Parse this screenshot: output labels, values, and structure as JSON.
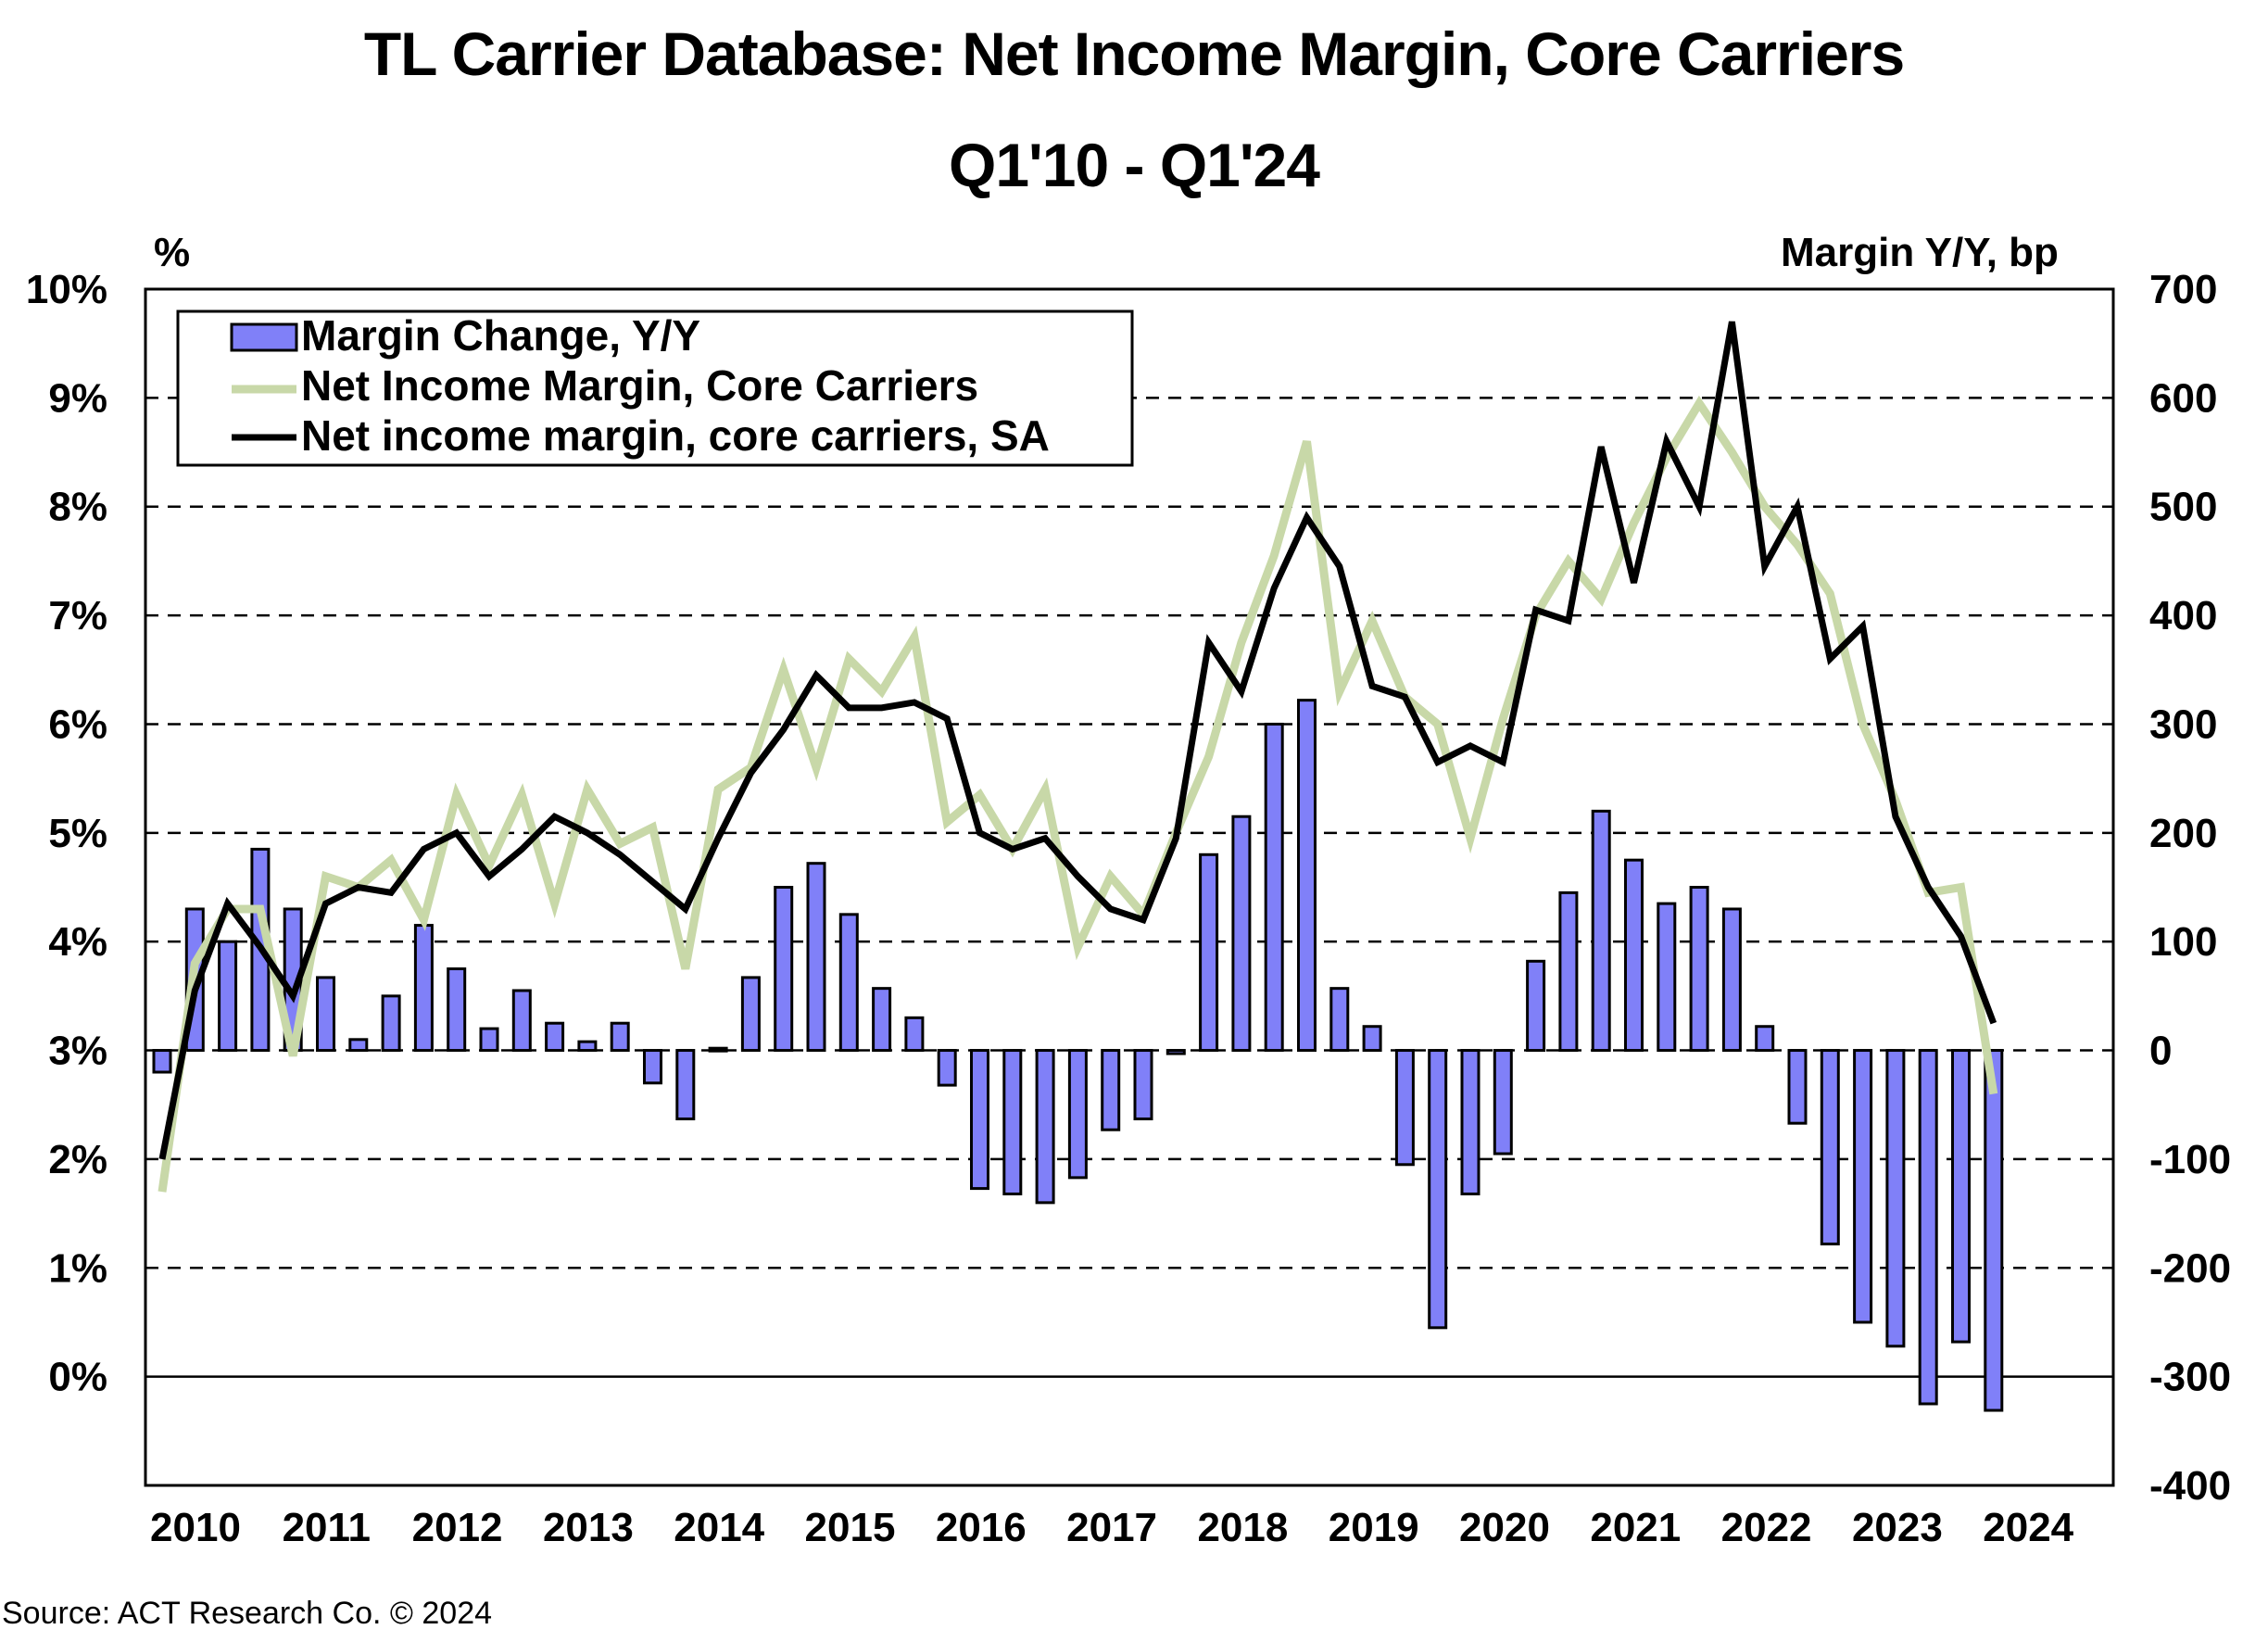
{
  "chart_data": {
    "type": "bar+line",
    "title": "TL Carrier Database: Net Income Margin, Core Carriers",
    "subtitle": "Q1'10 - Q1'24",
    "ylabel_left": "%",
    "ylabel_right": "Margin Y/Y, bp",
    "ylim_left": [
      -1,
      10
    ],
    "ylim_right": [
      -400,
      700
    ],
    "yticks_left": [
      "0%",
      "1%",
      "2%",
      "3%",
      "4%",
      "5%",
      "6%",
      "7%",
      "8%",
      "9%",
      "10%"
    ],
    "yticks_right": [
      "-400",
      "-300",
      "-200",
      "-100",
      "0",
      "100",
      "200",
      "300",
      "400",
      "500",
      "600",
      "700"
    ],
    "xticks": [
      "2010",
      "2011",
      "2012",
      "2013",
      "2014",
      "2015",
      "2016",
      "2017",
      "2018",
      "2019",
      "2020",
      "2021",
      "2022",
      "2023",
      "2024"
    ],
    "grid": "horizontal dashed",
    "legend_position": "top-left",
    "x": [
      "Q1'10",
      "Q2'10",
      "Q3'10",
      "Q4'10",
      "Q1'11",
      "Q2'11",
      "Q3'11",
      "Q4'11",
      "Q1'12",
      "Q2'12",
      "Q3'12",
      "Q4'12",
      "Q1'13",
      "Q2'13",
      "Q3'13",
      "Q4'13",
      "Q1'14",
      "Q2'14",
      "Q3'14",
      "Q4'14",
      "Q1'15",
      "Q2'15",
      "Q3'15",
      "Q4'15",
      "Q1'16",
      "Q2'16",
      "Q3'16",
      "Q4'16",
      "Q1'17",
      "Q2'17",
      "Q3'17",
      "Q4'17",
      "Q1'18",
      "Q2'18",
      "Q3'18",
      "Q4'18",
      "Q1'19",
      "Q2'19",
      "Q3'19",
      "Q4'19",
      "Q1'20",
      "Q2'20",
      "Q3'20",
      "Q4'20",
      "Q1'21",
      "Q2'21",
      "Q3'21",
      "Q4'21",
      "Q1'22",
      "Q2'22",
      "Q3'22",
      "Q4'22",
      "Q1'23",
      "Q2'23",
      "Q3'23",
      "Q4'23",
      "Q1'24"
    ],
    "series": [
      {
        "name": "Margin Change, Y/Y",
        "type": "bar",
        "axis": "right",
        "color": "#8080f8",
        "values": [
          -20,
          130,
          100,
          185,
          130,
          67,
          10,
          50,
          115,
          75,
          20,
          55,
          25,
          8,
          25,
          -30,
          -63,
          2,
          67,
          150,
          172,
          125,
          57,
          30,
          -32,
          -127,
          -132,
          -140,
          -117,
          -73,
          -63,
          -3,
          180,
          215,
          300,
          322,
          57,
          22,
          -105,
          -255,
          -132,
          -95,
          82,
          145,
          220,
          175,
          135,
          150,
          130,
          22,
          -67,
          -178,
          -250,
          -272,
          -325,
          -268,
          -331
        ]
      },
      {
        "name": "Net Income Margin, Core Carriers",
        "type": "line",
        "axis": "left",
        "color": "#c8d8a8",
        "values": [
          1.7,
          3.8,
          4.3,
          4.3,
          2.95,
          4.6,
          4.5,
          4.75,
          4.2,
          5.35,
          4.7,
          5.35,
          4.35,
          5.4,
          4.9,
          5.05,
          3.75,
          5.4,
          5.6,
          6.5,
          5.6,
          6.6,
          6.3,
          6.8,
          5.1,
          5.35,
          4.85,
          5.4,
          3.95,
          4.6,
          4.25,
          5.0,
          5.7,
          6.75,
          7.55,
          8.6,
          6.3,
          6.95,
          6.25,
          6.0,
          4.95,
          6.05,
          7.0,
          7.5,
          7.15,
          7.85,
          8.45,
          8.95,
          8.5,
          8.0,
          7.65,
          7.2,
          6.0,
          5.3,
          4.45,
          4.5,
          2.6
        ]
      },
      {
        "name": "Net income margin, core carriers, SA",
        "type": "line",
        "axis": "left",
        "color": "#000000",
        "values": [
          2.0,
          3.55,
          4.35,
          3.95,
          3.5,
          4.35,
          4.5,
          4.45,
          4.85,
          5.0,
          4.6,
          4.85,
          5.15,
          5.0,
          4.8,
          4.55,
          4.3,
          4.95,
          5.55,
          5.95,
          6.45,
          6.15,
          6.15,
          6.2,
          6.05,
          5.0,
          4.85,
          4.95,
          4.6,
          4.3,
          4.2,
          4.95,
          6.75,
          6.3,
          7.25,
          7.9,
          7.45,
          6.35,
          6.25,
          5.65,
          5.8,
          5.65,
          7.05,
          6.95,
          8.55,
          7.3,
          8.6,
          8.0,
          9.7,
          7.45,
          8.0,
          6.6,
          6.9,
          5.15,
          4.5,
          4.05,
          3.25
        ]
      }
    ],
    "source": "Source: ACT Research Co. © 2024"
  }
}
